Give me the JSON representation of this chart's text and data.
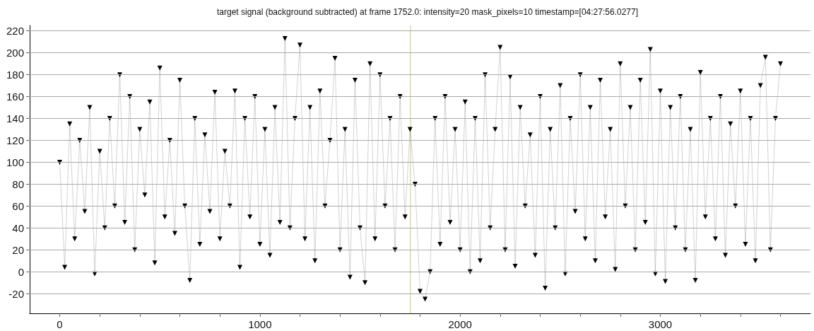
{
  "chart_data": {
    "type": "line",
    "title": "target signal (background subtracted) at frame 1752.0: intensity=20 mask_pixels=10 timestamp=[04:27:56.0277]",
    "x": [
      0,
      25,
      50,
      75,
      100,
      125,
      150,
      175,
      200,
      225,
      250,
      275,
      300,
      325,
      350,
      375,
      400,
      425,
      450,
      475,
      500,
      525,
      550,
      575,
      600,
      625,
      650,
      675,
      700,
      725,
      750,
      775,
      800,
      825,
      850,
      875,
      900,
      925,
      950,
      975,
      1000,
      1025,
      1050,
      1075,
      1100,
      1125,
      1150,
      1175,
      1200,
      1225,
      1250,
      1275,
      1300,
      1325,
      1350,
      1375,
      1400,
      1425,
      1450,
      1475,
      1500,
      1525,
      1550,
      1575,
      1600,
      1625,
      1650,
      1675,
      1700,
      1725,
      1750,
      1775,
      1800,
      1825,
      1850,
      1875,
      1900,
      1925,
      1950,
      1975,
      2000,
      2025,
      2050,
      2075,
      2100,
      2125,
      2150,
      2175,
      2200,
      2225,
      2250,
      2275,
      2300,
      2325,
      2350,
      2375,
      2400,
      2425,
      2450,
      2475,
      2500,
      2525,
      2550,
      2575,
      2600,
      2625,
      2650,
      2675,
      2700,
      2725,
      2750,
      2775,
      2800,
      2825,
      2850,
      2875,
      2900,
      2925,
      2950,
      2975,
      3000,
      3025,
      3050,
      3075,
      3100,
      3125,
      3150,
      3175,
      3200,
      3225,
      3250,
      3275,
      3300,
      3325,
      3350,
      3375,
      3400,
      3425,
      3450,
      3475,
      3500,
      3525,
      3550,
      3575,
      3600
    ],
    "series": [
      {
        "color": "#000000",
        "values": [
          100,
          4,
          135,
          30,
          120,
          55,
          150,
          -2,
          110,
          40,
          140,
          60,
          180,
          45,
          160,
          20,
          130,
          70,
          155,
          8,
          186,
          50,
          120,
          35,
          175,
          60,
          -8,
          140,
          25,
          125,
          55,
          164,
          30,
          110,
          60,
          165,
          4,
          140,
          50,
          160,
          25,
          130,
          15,
          150,
          45,
          213,
          40,
          140,
          207,
          30,
          150,
          10,
          165,
          60,
          120,
          195,
          20,
          130,
          -5,
          175,
          40,
          -10,
          190,
          30,
          180,
          60,
          140,
          20,
          160,
          50,
          130,
          80,
          -18,
          -25,
          0,
          140,
          25,
          160,
          45,
          130,
          20,
          155,
          0,
          140,
          10,
          180,
          40,
          130,
          205,
          20,
          178,
          5,
          150,
          60,
          125,
          15,
          160,
          -15,
          130,
          40,
          170,
          -2,
          140,
          55,
          180,
          30,
          150,
          10,
          175,
          50,
          130,
          2,
          190,
          60,
          150,
          20,
          175,
          45,
          203,
          -2,
          165,
          -9,
          150,
          40,
          160,
          20,
          130,
          -8,
          182,
          50,
          140,
          30,
          160,
          15,
          135,
          60,
          165,
          25,
          140,
          10,
          170,
          196,
          20,
          140,
          190
        ]
      }
    ],
    "xlim": [
      -150,
      3750
    ],
    "ylim": [
      -38,
      225
    ],
    "xticks": [
      0,
      {
        "value": 200,
        "label": null
      },
      {
        "value": 400,
        "label": null
      },
      {
        "value": 600,
        "label": null
      },
      {
        "value": 800,
        "label": null
      },
      1000,
      {
        "value": 1200,
        "label": null
      },
      {
        "value": 1400,
        "label": null
      },
      {
        "value": 1600,
        "label": null
      },
      {
        "value": 1800,
        "label": null
      },
      2000,
      {
        "value": 2200,
        "label": null
      },
      {
        "value": 2400,
        "label": null
      },
      {
        "value": 2600,
        "label": null
      },
      {
        "value": 2800,
        "label": null
      },
      3000,
      {
        "value": 3200,
        "label": null
      },
      {
        "value": 3400,
        "label": null
      },
      {
        "value": 3600,
        "label": null
      }
    ],
    "yticks": [
      -20,
      0,
      20,
      40,
      60,
      80,
      100,
      120,
      140,
      160,
      180,
      200,
      220
    ],
    "grid": "y",
    "marker": "triangle",
    "line_style": "solid",
    "ref_lines": [
      {
        "axis": "x",
        "value": 1752,
        "color": "#d8cf8a"
      }
    ]
  }
}
